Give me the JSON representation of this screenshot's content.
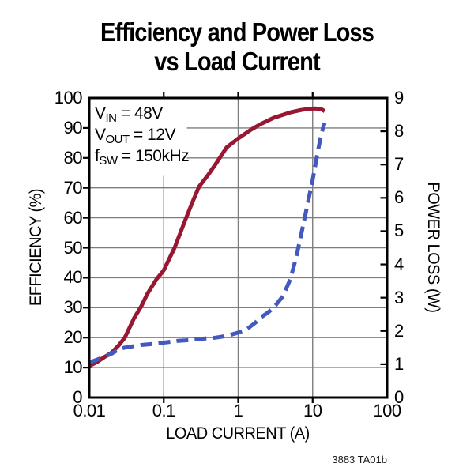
{
  "title": {
    "line1": "Efficiency and Power Loss",
    "line2": "vs Load Current"
  },
  "annotation": {
    "l1": {
      "base": "V",
      "sub": "IN",
      "rest": " = 48V"
    },
    "l2": {
      "base": "V",
      "sub": "OUT",
      "rest": " = 12V"
    },
    "l3": {
      "base": "f",
      "sub": "SW",
      "rest": " = 150kHz"
    }
  },
  "footnote": "3883 TA01b",
  "colors": {
    "efficiency_line": "#981733",
    "power_loss_line": "#4459bd",
    "gridline": "#7d7d7d",
    "axis": "#000000",
    "background": "#ffffff"
  },
  "chart_data": {
    "type": "line",
    "title": "Efficiency and Power Loss vs Load Current",
    "x_axis": {
      "label": "LOAD CURRENT (A)",
      "scale": "log",
      "min": 0.01,
      "max": 100,
      "ticks": [
        "0.01",
        "0.1",
        "1",
        "10",
        "100"
      ]
    },
    "y_left": {
      "label": "EFFICIENCY (%)",
      "min": 0,
      "max": 100,
      "tick_step": 10,
      "ticks": [
        "100",
        "90",
        "80",
        "70",
        "60",
        "50",
        "40",
        "30",
        "20",
        "10",
        "0"
      ]
    },
    "y_right": {
      "label": "POWER LOSS (W)",
      "min": 0,
      "max": 9,
      "tick_step": 1,
      "ticks": [
        "9",
        "8",
        "7",
        "6",
        "5",
        "4",
        "3",
        "2",
        "1",
        "0"
      ]
    },
    "grid": {
      "horizontal": "left-axis 10% steps",
      "vertical": "log decades",
      "on": true
    },
    "legend": "none",
    "series": [
      {
        "name": "Efficiency",
        "axis": "left",
        "units": "%",
        "style": "solid",
        "color": "#981733",
        "points": [
          [
            0.01,
            10.5
          ],
          [
            0.013,
            12
          ],
          [
            0.016,
            13.5
          ],
          [
            0.02,
            15
          ],
          [
            0.025,
            17.5
          ],
          [
            0.03,
            20
          ],
          [
            0.04,
            26.5
          ],
          [
            0.05,
            30.5
          ],
          [
            0.06,
            34.5
          ],
          [
            0.08,
            39.5
          ],
          [
            0.1,
            42.5
          ],
          [
            0.14,
            50
          ],
          [
            0.2,
            60
          ],
          [
            0.25,
            66
          ],
          [
            0.3,
            70.5
          ],
          [
            0.4,
            74.5
          ],
          [
            0.5,
            78
          ],
          [
            0.7,
            83.5
          ],
          [
            1,
            86.5
          ],
          [
            1.5,
            89.5
          ],
          [
            2,
            91.3
          ],
          [
            3,
            93.4
          ],
          [
            4,
            94.4
          ],
          [
            5,
            95.2
          ],
          [
            7,
            96
          ],
          [
            9,
            96.4
          ],
          [
            11,
            96.5
          ],
          [
            13,
            96.3
          ],
          [
            14.5,
            95.6
          ]
        ]
      },
      {
        "name": "Power Loss",
        "axis": "right",
        "units": "W",
        "style": "dashed",
        "color": "#4459bd",
        "points": [
          [
            0.01,
            1.05
          ],
          [
            0.015,
            1.2
          ],
          [
            0.02,
            1.32
          ],
          [
            0.025,
            1.45
          ],
          [
            0.03,
            1.5
          ],
          [
            0.05,
            1.58
          ],
          [
            0.08,
            1.62
          ],
          [
            0.1,
            1.65
          ],
          [
            0.15,
            1.7
          ],
          [
            0.2,
            1.72
          ],
          [
            0.3,
            1.76
          ],
          [
            0.5,
            1.8
          ],
          [
            0.7,
            1.85
          ],
          [
            1,
            1.95
          ],
          [
            1.3,
            2.05
          ],
          [
            1.7,
            2.25
          ],
          [
            2,
            2.4
          ],
          [
            2.5,
            2.55
          ],
          [
            3,
            2.7
          ],
          [
            4,
            3.05
          ],
          [
            5,
            3.55
          ],
          [
            6,
            4.2
          ],
          [
            7,
            4.9
          ],
          [
            8,
            5.5
          ],
          [
            9,
            6.05
          ],
          [
            10,
            6.55
          ],
          [
            11,
            7.05
          ],
          [
            12,
            7.5
          ],
          [
            13,
            7.9
          ],
          [
            14,
            8.15
          ],
          [
            14.5,
            8.25
          ]
        ]
      }
    ]
  }
}
